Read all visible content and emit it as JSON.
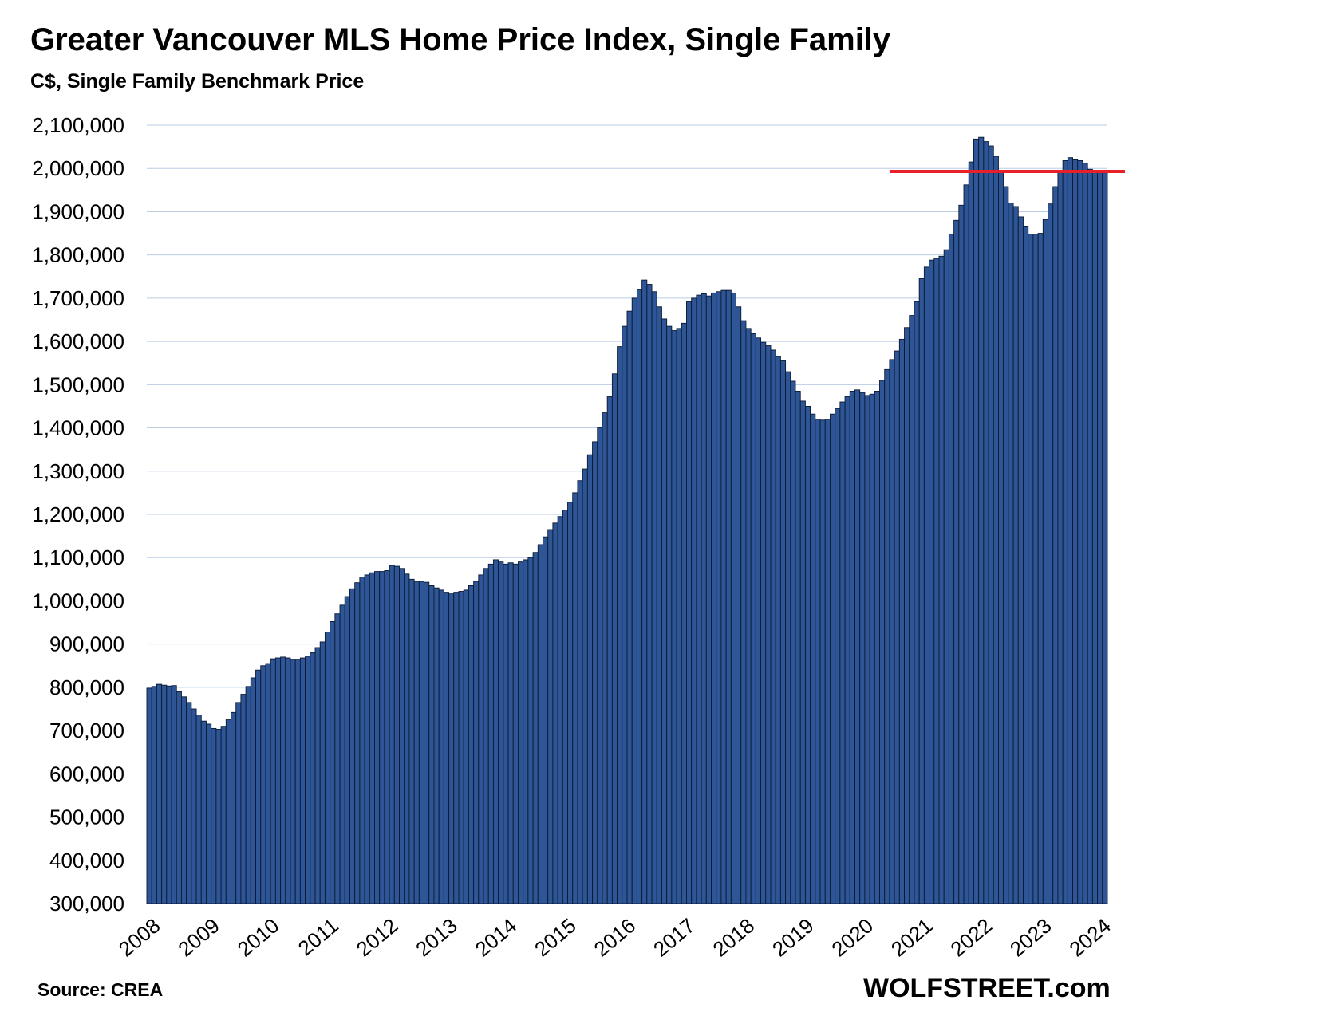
{
  "chart_data": {
    "type": "bar",
    "title": "Greater Vancouver MLS Home Price Index, Single Family",
    "subtitle": "C$, Single Family Benchmark Price",
    "source": "Source: CREA",
    "brand": "WOLFSTREET.com",
    "ylim": [
      300000,
      2100000
    ],
    "yticks": [
      300000,
      400000,
      500000,
      600000,
      700000,
      800000,
      900000,
      1000000,
      1100000,
      1200000,
      1300000,
      1400000,
      1500000,
      1600000,
      1700000,
      1800000,
      1900000,
      2000000,
      2100000
    ],
    "ytick_labels": [
      "300,000",
      "400,000",
      "500,000",
      "600,000",
      "700,000",
      "800,000",
      "900,000",
      "1,000,000",
      "1,100,000",
      "1,200,000",
      "1,300,000",
      "1,400,000",
      "1,500,000",
      "1,600,000",
      "1,700,000",
      "1,800,000",
      "1,900,000",
      "2,000,000",
      "2,100,000"
    ],
    "xtick_labels": [
      "2008",
      "2009",
      "2010",
      "2011",
      "2012",
      "2013",
      "2014",
      "2015",
      "2016",
      "2017",
      "2018",
      "2019",
      "2020",
      "2021",
      "2022",
      "2023",
      "2024"
    ],
    "grid": true,
    "bar_color": "#2e5596",
    "bar_edge_color": "#0b1a33",
    "reference_line": {
      "value": 1993000,
      "from": "2020-07",
      "color": "#e8202a"
    },
    "start": "2008-01",
    "values": [
      798000,
      802000,
      807000,
      805000,
      803000,
      804000,
      790000,
      778000,
      765000,
      750000,
      736000,
      722000,
      715000,
      705000,
      703000,
      710000,
      725000,
      742000,
      765000,
      784000,
      802000,
      822000,
      840000,
      850000,
      855000,
      866000,
      868000,
      870000,
      868000,
      865000,
      865000,
      868000,
      872000,
      880000,
      892000,
      905000,
      928000,
      952000,
      970000,
      990000,
      1010000,
      1028000,
      1042000,
      1055000,
      1060000,
      1065000,
      1068000,
      1068000,
      1070000,
      1082000,
      1080000,
      1075000,
      1062000,
      1050000,
      1044000,
      1045000,
      1043000,
      1035000,
      1030000,
      1025000,
      1020000,
      1018000,
      1020000,
      1022000,
      1025000,
      1035000,
      1045000,
      1060000,
      1075000,
      1085000,
      1095000,
      1090000,
      1085000,
      1088000,
      1085000,
      1090000,
      1095000,
      1100000,
      1112000,
      1130000,
      1148000,
      1165000,
      1180000,
      1195000,
      1210000,
      1228000,
      1250000,
      1278000,
      1305000,
      1338000,
      1368000,
      1400000,
      1435000,
      1472000,
      1525000,
      1588000,
      1635000,
      1670000,
      1700000,
      1720000,
      1742000,
      1732000,
      1715000,
      1680000,
      1652000,
      1635000,
      1625000,
      1630000,
      1642000,
      1692000,
      1700000,
      1707000,
      1710000,
      1705000,
      1712000,
      1715000,
      1718000,
      1718000,
      1712000,
      1680000,
      1648000,
      1630000,
      1618000,
      1608000,
      1598000,
      1590000,
      1580000,
      1565000,
      1555000,
      1530000,
      1508000,
      1485000,
      1462000,
      1450000,
      1432000,
      1420000,
      1418000,
      1420000,
      1432000,
      1445000,
      1460000,
      1472000,
      1485000,
      1488000,
      1482000,
      1475000,
      1478000,
      1485000,
      1510000,
      1535000,
      1558000,
      1578000,
      1605000,
      1632000,
      1660000,
      1692000,
      1745000,
      1772000,
      1788000,
      1792000,
      1797000,
      1812000,
      1848000,
      1880000,
      1915000,
      1962000,
      2015000,
      2068000,
      2072000,
      2062000,
      2052000,
      2028000,
      1992000,
      1958000,
      1920000,
      1912000,
      1888000,
      1865000,
      1848000,
      1848000,
      1850000,
      1882000,
      1918000,
      1958000,
      1995000,
      2018000,
      2025000,
      2020000,
      2018000,
      2012000,
      1998000,
      1992000,
      1993000,
      1990000
    ]
  }
}
